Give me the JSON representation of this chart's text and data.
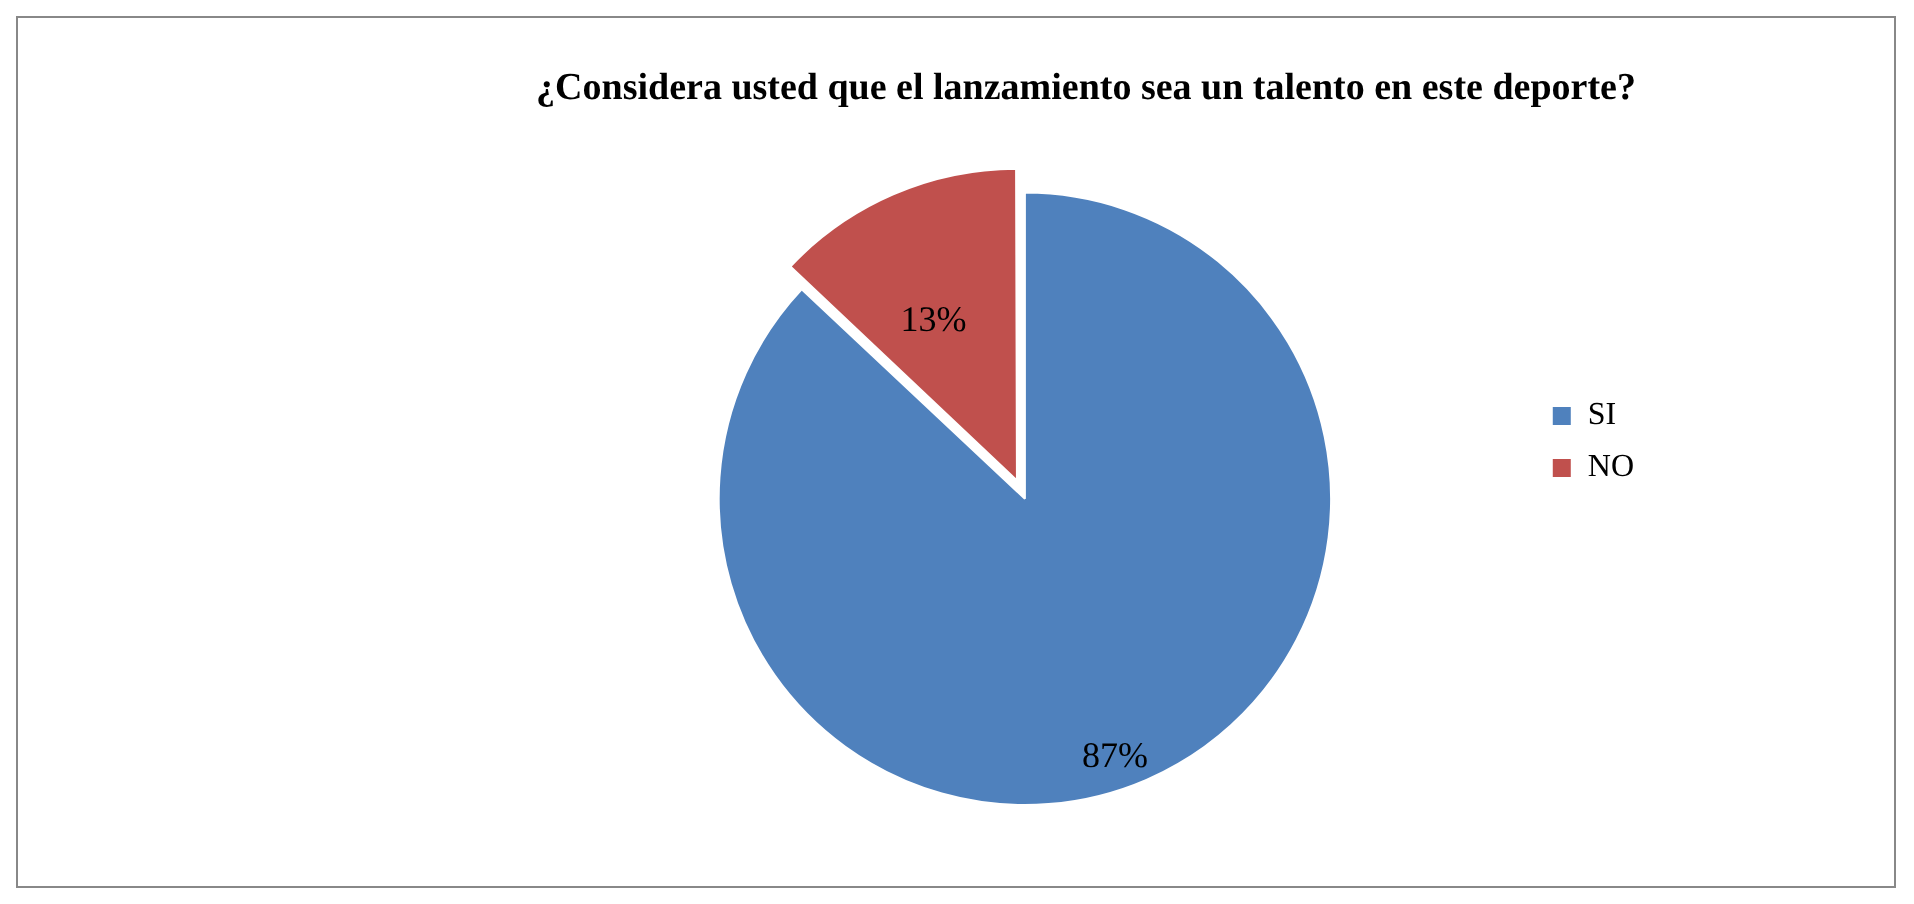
{
  "chart_data": {
    "type": "pie",
    "title": "¿Considera usted que el lanzamiento sea un talento en este deporte?",
    "categories": [
      "SI",
      "NO"
    ],
    "values": [
      87,
      13
    ],
    "colors": [
      "#4f81bd",
      "#c0504d"
    ],
    "value_labels": [
      "87%",
      "13%"
    ],
    "legend": "right"
  }
}
